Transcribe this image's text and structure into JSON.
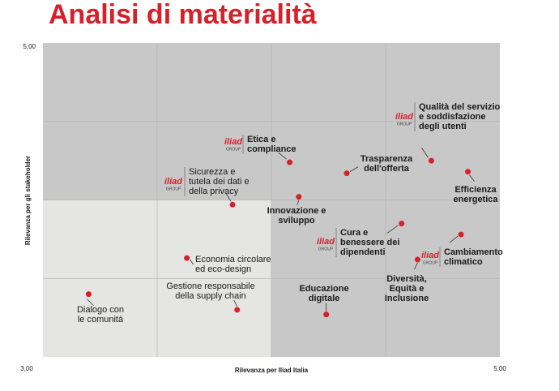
{
  "chart_data": {
    "type": "scatter",
    "title": "Analisi di materialità",
    "x_label": "Rilevanza per Iliad Italia",
    "y_label": "Rilevanza per gli stakeholder",
    "xlim": [
      3,
      5
    ],
    "ylim": [
      3,
      5
    ],
    "xticks": [
      {
        "value": 3,
        "label": "3,00"
      },
      {
        "value": 5,
        "label": "5,00"
      }
    ],
    "yticks": [
      {
        "value": 5,
        "label": "5,00"
      }
    ],
    "color": "#d6202a",
    "logo": {
      "name": "iliad",
      "sub": "GROUP"
    },
    "points": [
      {
        "label": [
          "Dialogo con",
          "le comunità"
        ],
        "x": 3.2,
        "y": 3.4
      },
      {
        "label": [
          "Economia circolare",
          "ed eco-design"
        ],
        "x": 3.63,
        "y": 3.63
      },
      {
        "label": [
          "Gestione responsabile",
          "della supply chain"
        ],
        "x": 3.85,
        "y": 3.3
      },
      {
        "label": [
          "Sicurezza e",
          "tutela dei dati e",
          "della privacy"
        ],
        "x": 3.83,
        "y": 3.97,
        "logo": true
      },
      {
        "label": [
          "Etica e",
          "compliance"
        ],
        "x": 4.08,
        "y": 4.24,
        "logo": true
      },
      {
        "label": [
          "Innovazione e",
          "sviluppo"
        ],
        "x": 4.12,
        "y": 4.02
      },
      {
        "label": [
          "Educazione",
          "digitale"
        ],
        "x": 4.24,
        "y": 3.27
      },
      {
        "label": [
          "Trasparenza",
          "dell'offerta"
        ],
        "x": 4.33,
        "y": 4.17
      },
      {
        "label": [
          "Cura e",
          "benessere dei",
          "dipendenti"
        ],
        "x": 4.57,
        "y": 3.85,
        "logo": true
      },
      {
        "label": [
          "Diversità,",
          "Equità e",
          "Inclusione"
        ],
        "x": 4.64,
        "y": 3.62
      },
      {
        "label": [
          "Qualità del servizio",
          "e soddisfazione",
          "degli utenti"
        ],
        "x": 4.7,
        "y": 4.25,
        "logo": true
      },
      {
        "label": [
          "Cambiamento",
          "climatico"
        ],
        "x": 4.83,
        "y": 3.78,
        "logo": true
      },
      {
        "label": [
          "Efficienza",
          "energetica"
        ],
        "x": 4.86,
        "y": 4.18
      }
    ]
  }
}
